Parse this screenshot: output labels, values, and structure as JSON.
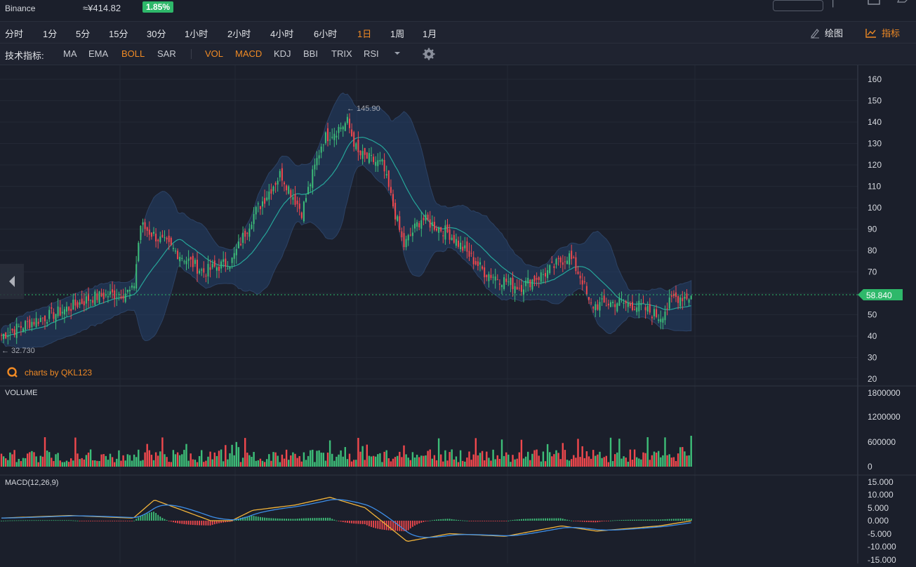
{
  "header": {
    "exchange": "Binance",
    "price": "≈¥414.82",
    "change": "1.85%"
  },
  "timeframes": [
    {
      "label": "分时",
      "active": false
    },
    {
      "label": "1分",
      "active": false
    },
    {
      "label": "5分",
      "active": false
    },
    {
      "label": "15分",
      "active": false
    },
    {
      "label": "30分",
      "active": false
    },
    {
      "label": "1小时",
      "active": false
    },
    {
      "label": "2小时",
      "active": false
    },
    {
      "label": "4小时",
      "active": false
    },
    {
      "label": "6小时",
      "active": false
    },
    {
      "label": "1日",
      "active": true
    },
    {
      "label": "1周",
      "active": false
    },
    {
      "label": "1月",
      "active": false
    }
  ],
  "tools": {
    "draw_label": "绘图",
    "indicators_label": "指标"
  },
  "indicators": {
    "label": "技术指标:",
    "items": [
      {
        "label": "MA",
        "on": false
      },
      {
        "label": "EMA",
        "on": false
      },
      {
        "label": "BOLL",
        "on": true
      },
      {
        "label": "SAR",
        "on": false
      },
      {
        "label": "VOL",
        "on": true
      },
      {
        "label": "MACD",
        "on": true
      },
      {
        "label": "KDJ",
        "on": false
      },
      {
        "label": "BBI",
        "on": false
      },
      {
        "label": "TRIX",
        "on": false
      },
      {
        "label": "RSI",
        "on": false
      }
    ]
  },
  "chart": {
    "price_axis": [
      "160",
      "150",
      "140",
      "130",
      "120",
      "110",
      "100",
      "90",
      "80",
      "70",
      "60",
      "50",
      "40",
      "30",
      "20"
    ],
    "current_price": "58.840",
    "high_label": "← 145.90",
    "low_label": "← 32.730",
    "watermark": "charts by QKL123",
    "volume_title": "VOLUME",
    "volume_axis": [
      "1800000",
      "1200000",
      "600000",
      "0"
    ],
    "macd_title": "MACD(12,26,9)",
    "macd_axis": [
      "15.000",
      "10.000",
      "5.000",
      "0.000",
      "-5.000",
      "-10.000",
      "-15.000"
    ]
  },
  "colors": {
    "up": "#3dbd78",
    "down": "#f0484d",
    "accent": "#f08a24",
    "price_tag": "#2eb86a",
    "boll_fill": "#24406a",
    "boll_mid": "#26a69a",
    "macd_dif": "#3d8ee8",
    "macd_dea": "#f2b43a"
  }
}
